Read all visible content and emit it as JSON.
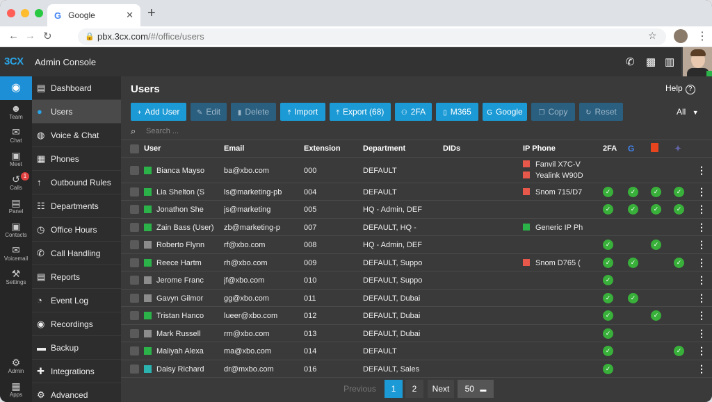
{
  "browser": {
    "tab_title": "Google",
    "url_host": "pbx.3cx.com",
    "url_path": "/#/office/users"
  },
  "app": {
    "logo": "3CX",
    "title": "Admin Console"
  },
  "rail": [
    {
      "label": "Team",
      "icon": "team-icon"
    },
    {
      "label": "Chat",
      "icon": "chat-icon"
    },
    {
      "label": "Meet",
      "icon": "meet-icon"
    },
    {
      "label": "Calls",
      "icon": "calls-icon",
      "badge": "1"
    },
    {
      "label": "Panel",
      "icon": "panel-icon"
    },
    {
      "label": "Contacts",
      "icon": "contacts-icon"
    },
    {
      "label": "Voicemail",
      "icon": "voicemail-icon"
    },
    {
      "label": "Settings",
      "icon": "settings-icon"
    },
    {
      "label": "Admin",
      "icon": "admin-icon"
    },
    {
      "label": "Apps",
      "icon": "apps-icon"
    }
  ],
  "sidebar": [
    {
      "label": "Dashboard",
      "icon": "▤"
    },
    {
      "label": "Users",
      "icon": "●"
    },
    {
      "label": "Voice & Chat",
      "icon": "◍"
    },
    {
      "label": "Phones",
      "icon": "▦"
    },
    {
      "label": "Outbound Rules",
      "icon": "↑"
    },
    {
      "label": "Departments",
      "icon": "☷"
    },
    {
      "label": "Office Hours",
      "icon": "◷"
    },
    {
      "label": "Call Handling",
      "icon": "✆"
    },
    {
      "label": "Reports",
      "icon": "▤"
    },
    {
      "label": "Event Log",
      "icon": "◔"
    },
    {
      "label": "Recordings",
      "icon": "◉"
    },
    {
      "label": "Backup",
      "icon": "▬"
    },
    {
      "label": "Integrations",
      "icon": "✚"
    },
    {
      "label": "Advanced",
      "icon": "⚙"
    }
  ],
  "page": {
    "title": "Users",
    "help": "Help",
    "filter": "All",
    "search_placeholder": "Search ..."
  },
  "toolbar": [
    {
      "label": "Add User",
      "icon": "+",
      "enabled": true
    },
    {
      "label": "Edit",
      "icon": "✎",
      "enabled": false
    },
    {
      "label": "Delete",
      "icon": "▮",
      "enabled": false
    },
    {
      "label": "Import",
      "icon": "⤒",
      "enabled": true
    },
    {
      "label": "Export (68)",
      "icon": "⤒",
      "enabled": true
    },
    {
      "label": "2FA",
      "icon": "⚇",
      "enabled": true
    },
    {
      "label": "M365",
      "icon": "▯",
      "enabled": true
    },
    {
      "label": "Google",
      "icon": "G",
      "enabled": true
    },
    {
      "label": "Copy",
      "icon": "❐",
      "enabled": false
    },
    {
      "label": "Reset",
      "icon": "↻",
      "enabled": false
    }
  ],
  "columns": {
    "user": "User",
    "email": "Email",
    "extension": "Extension",
    "department": "Department",
    "dids": "DIDs",
    "ip_phone": "IP Phone",
    "twofa": "2FA"
  },
  "colors": {
    "online": "#2bb34a",
    "offline": "#8c8c8c",
    "teal": "#2bb3b0",
    "phone": "#e8584a",
    "accent": "#1b9ad6"
  },
  "users": [
    {
      "name": "Bianca Mayso",
      "status": "online",
      "email": "ba@xbo.com",
      "ext": "000",
      "dept": "DEFAULT",
      "phones": [
        "Fanvil X7C-V",
        "Yealink W90D"
      ],
      "checks": [
        false,
        false,
        false,
        false
      ]
    },
    {
      "name": "Lia Shelton (S",
      "status": "online",
      "email": "ls@marketing-pb",
      "ext": "004",
      "dept": "DEFAULT",
      "phones": [
        "Snom 715/D7"
      ],
      "checks": [
        true,
        true,
        true,
        true
      ]
    },
    {
      "name": "Jonathon She",
      "status": "online",
      "email": "js@marketing",
      "ext": "005",
      "dept": "HQ - Admin, DEF",
      "phones": [],
      "checks": [
        true,
        true,
        true,
        true
      ]
    },
    {
      "name": "Zain Bass (User)",
      "status": "online",
      "email": "zb@marketing-p",
      "ext": "007",
      "dept": "DEFAULT, HQ -",
      "phones": [
        "Generic IP Ph"
      ],
      "phone_color": "online",
      "checks": [
        false,
        false,
        false,
        false
      ]
    },
    {
      "name": "Roberto Flynn",
      "status": "offline",
      "email": "rf@xbo.com",
      "ext": "008",
      "dept": "HQ - Admin, DEF",
      "phones": [],
      "checks": [
        true,
        false,
        true,
        false
      ]
    },
    {
      "name": "Reece Hartm",
      "status": "online",
      "email": "rh@xbo.com",
      "ext": "009",
      "dept": "DEFAULT, Suppo",
      "phones": [
        "Snom D765 ("
      ],
      "checks": [
        true,
        true,
        false,
        true
      ]
    },
    {
      "name": "Jerome Franc",
      "status": "offline",
      "email": "jf@xbo.com",
      "ext": "010",
      "dept": "DEFAULT, Suppo",
      "phones": [],
      "checks": [
        true,
        false,
        false,
        false
      ]
    },
    {
      "name": "Gavyn Gilmor",
      "status": "offline",
      "email": "gg@xbo.com",
      "ext": "011",
      "dept": "DEFAULT, Dubai",
      "phones": [],
      "checks": [
        true,
        true,
        false,
        false
      ]
    },
    {
      "name": "Tristan Hanco",
      "status": "online",
      "email": "lueer@xbo.com",
      "ext": "012",
      "dept": "DEFAULT, Dubai",
      "phones": [],
      "checks": [
        true,
        false,
        true,
        false
      ]
    },
    {
      "name": "Mark Russell",
      "status": "offline",
      "email": "rm@xbo.com",
      "ext": "013",
      "dept": "DEFAULT, Dubai",
      "phones": [],
      "checks": [
        true,
        false,
        false,
        false
      ]
    },
    {
      "name": "Maliyah Alexa",
      "status": "online",
      "email": "ma@xbo.com",
      "ext": "014",
      "dept": "DEFAULT",
      "phones": [],
      "checks": [
        true,
        false,
        false,
        true
      ]
    },
    {
      "name": "Daisy Richard",
      "status": "teal",
      "email": "dr@mxbo.com",
      "ext": "016",
      "dept": "DEFAULT, Sales",
      "phones": [],
      "checks": [
        true,
        false,
        false,
        false
      ]
    }
  ],
  "pagination": {
    "previous": "Previous",
    "pages": [
      "1",
      "2"
    ],
    "current": "1",
    "next": "Next",
    "page_size": "50"
  }
}
